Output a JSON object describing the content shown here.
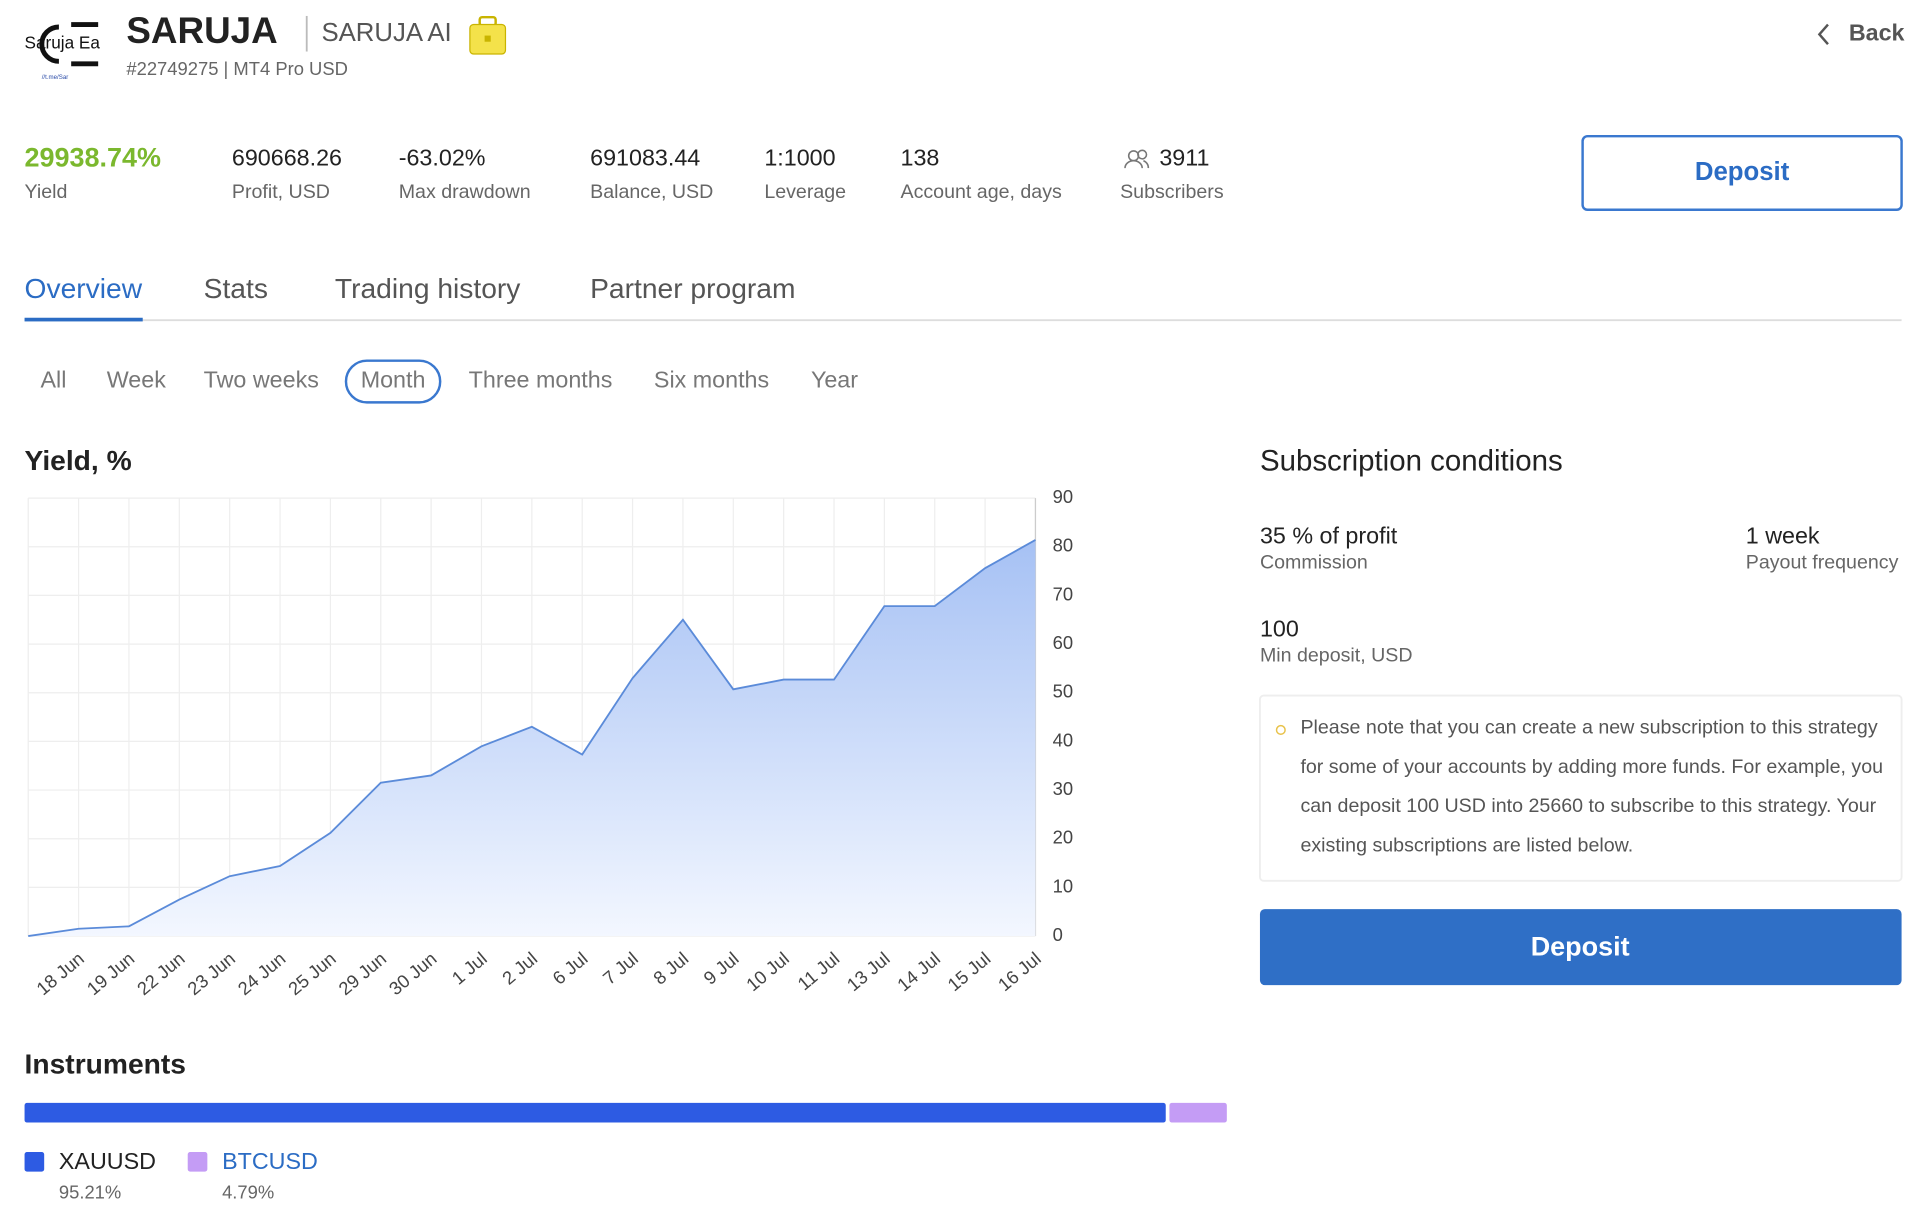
{
  "header": {
    "logo_text": "Saruja Ea",
    "logo_link": "//t.me/Sar",
    "title": "SARUJA",
    "subtitle": "SARUJA AI",
    "account": "#22749275 | MT4 Pro USD",
    "back": "Back"
  },
  "stats": [
    {
      "value": "29938.74%",
      "label": "Yield"
    },
    {
      "value": "690668.26",
      "label": "Profit, USD"
    },
    {
      "value": "-63.02%",
      "label": "Max drawdown"
    },
    {
      "value": "691083.44",
      "label": "Balance, USD"
    },
    {
      "value": "1:1000",
      "label": "Leverage"
    },
    {
      "value": "138",
      "label": "Account age, days"
    },
    {
      "value": "3911",
      "label": "Subscribers"
    }
  ],
  "deposit_button": "Deposit",
  "tabs": {
    "items": [
      "Overview",
      "Stats",
      "Trading history",
      "Partner program"
    ],
    "active": 0
  },
  "periods": {
    "items": [
      "All",
      "Week",
      "Two weeks",
      "Month",
      "Three months",
      "Six months",
      "Year"
    ],
    "active": 3
  },
  "chart_data": {
    "type": "line",
    "title": "Yield, %",
    "categories": [
      null,
      "18 Jun",
      "19 Jun",
      "22 Jun",
      "23 Jun",
      "24 Jun",
      "25 Jun",
      "29 Jun",
      "30 Jun",
      "1 Jul",
      "2 Jul",
      "6 Jul",
      "7 Jul",
      "8 Jul",
      "9 Jul",
      "10 Jul",
      "11 Jul",
      "13 Jul",
      "14 Jul",
      "15 Jul",
      "16 Jul"
    ],
    "values": [
      0,
      1.5,
      2,
      7.5,
      12.3,
      14.4,
      21.2,
      31.5,
      33,
      39,
      43,
      37.3,
      53,
      65,
      50.7,
      52.7,
      52.7,
      67.8,
      67.8,
      75.6,
      81.4
    ],
    "color": "#5b8bd9",
    "ylim": [
      0,
      90
    ],
    "yticks": [
      0,
      10,
      20,
      30,
      40,
      50,
      60,
      70,
      80,
      90
    ],
    "grid": true
  },
  "subscription": {
    "title": "Subscription conditions",
    "items": [
      {
        "value": "35 % of profit",
        "label": "Commission"
      },
      {
        "value": "1 week",
        "label": "Payout frequency"
      },
      {
        "value": "100",
        "label": "Min deposit, USD"
      }
    ],
    "note": "Please note that you can create a new subscription to this strategy for some of your accounts by adding more funds. For example, you can deposit 100 USD into 25660 to subscribe to this strategy. Your existing subscriptions are listed below.",
    "button": "Deposit"
  },
  "instruments": {
    "title": "Instruments",
    "items": [
      {
        "name": "XAUUSD",
        "value": 95.21,
        "value_label": "95.21%",
        "color": "#2d5be3"
      },
      {
        "name": "BTCUSD",
        "value": 4.79,
        "value_label": "4.79%",
        "color": "#c49cf5"
      }
    ]
  }
}
